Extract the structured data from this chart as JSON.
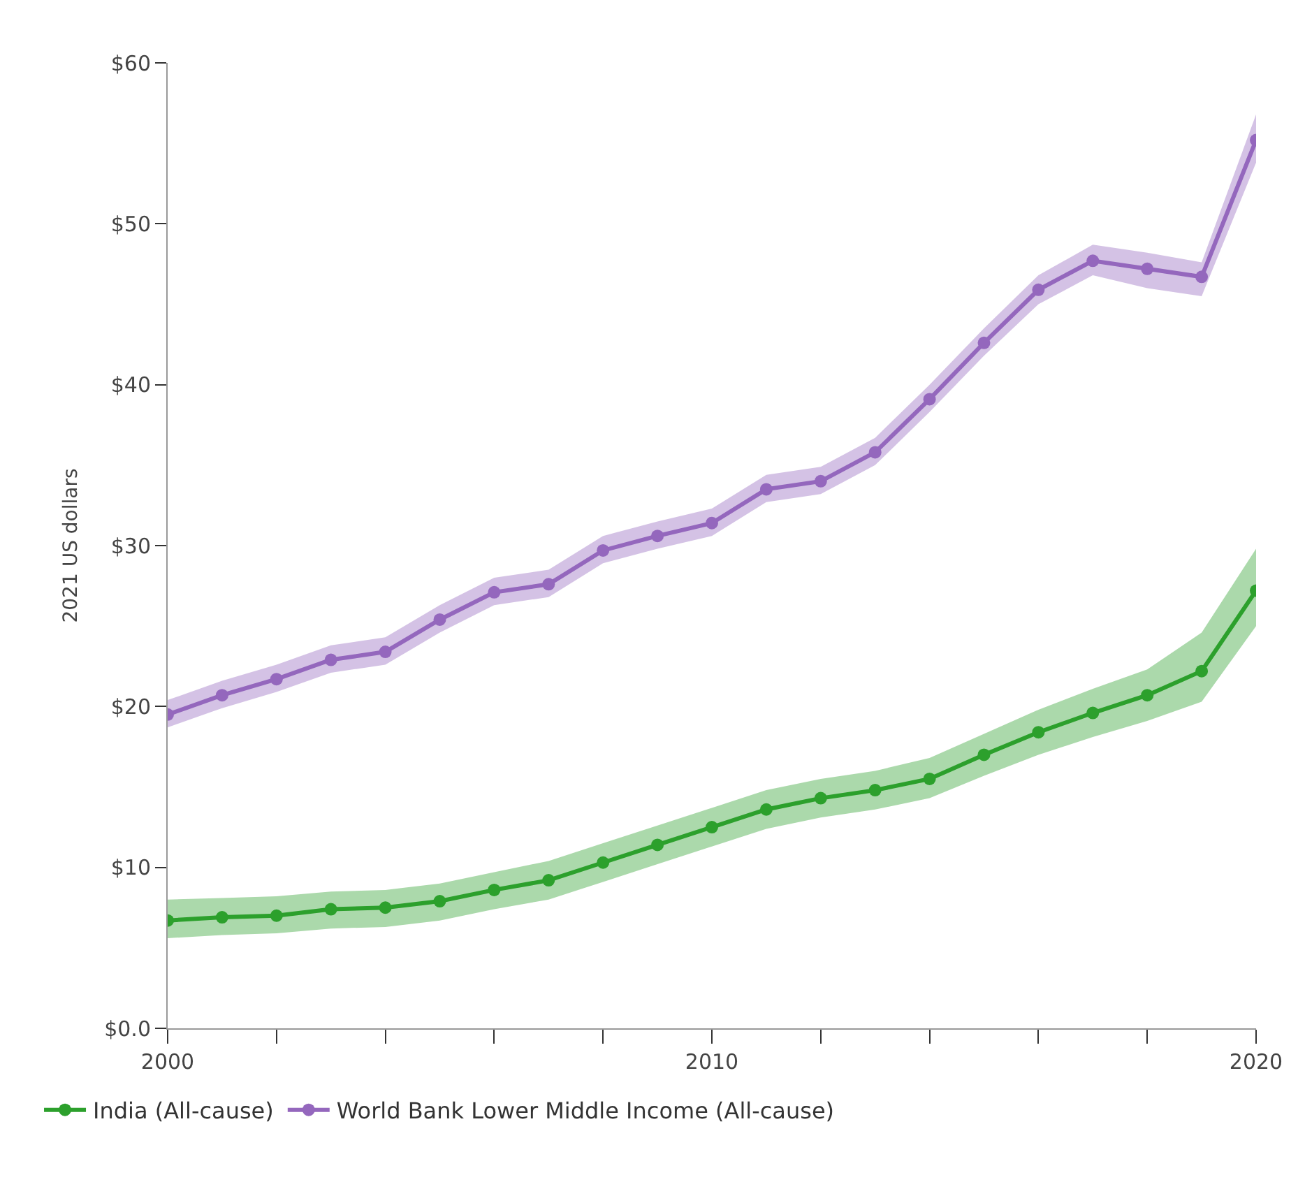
{
  "chart_data": {
    "type": "line",
    "ylabel": "2021 US dollars",
    "x": [
      2000,
      2001,
      2002,
      2003,
      2004,
      2005,
      2006,
      2007,
      2008,
      2009,
      2010,
      2011,
      2012,
      2013,
      2014,
      2015,
      2016,
      2017,
      2018,
      2019,
      2020
    ],
    "series": [
      {
        "name": "India (All-cause)",
        "color": "#2ca02c",
        "values": [
          6.7,
          6.9,
          7.0,
          7.4,
          7.5,
          7.9,
          8.6,
          9.2,
          10.3,
          11.4,
          12.5,
          13.6,
          14.3,
          14.8,
          15.5,
          17.0,
          18.4,
          19.6,
          20.7,
          22.2,
          27.2
        ],
        "lower": [
          5.6,
          5.8,
          5.9,
          6.2,
          6.3,
          6.7,
          7.4,
          8.0,
          9.1,
          10.2,
          11.3,
          12.4,
          13.1,
          13.6,
          14.3,
          15.7,
          17.0,
          18.1,
          19.1,
          20.3,
          25.0
        ],
        "upper": [
          8.0,
          8.1,
          8.2,
          8.5,
          8.6,
          9.0,
          9.7,
          10.4,
          11.5,
          12.6,
          13.7,
          14.8,
          15.5,
          16.0,
          16.8,
          18.3,
          19.8,
          21.1,
          22.3,
          24.6,
          29.8
        ]
      },
      {
        "name": "World Bank Lower Middle Income (All-cause)",
        "color": "#9467bd",
        "values": [
          19.5,
          20.7,
          21.7,
          22.9,
          23.4,
          25.4,
          27.1,
          27.6,
          29.7,
          30.6,
          31.4,
          33.5,
          34.0,
          35.8,
          39.1,
          42.6,
          45.9,
          47.7,
          47.2,
          46.7,
          55.2
        ],
        "lower": [
          18.7,
          19.9,
          20.9,
          22.1,
          22.6,
          24.6,
          26.3,
          26.8,
          28.9,
          29.8,
          30.6,
          32.7,
          33.2,
          35.0,
          38.3,
          41.8,
          45.0,
          46.8,
          46.0,
          45.5,
          53.8
        ],
        "upper": [
          20.4,
          21.6,
          22.6,
          23.8,
          24.3,
          26.3,
          28.0,
          28.5,
          30.6,
          31.5,
          32.3,
          34.4,
          34.9,
          36.7,
          40.0,
          43.5,
          46.8,
          48.7,
          48.2,
          47.6,
          56.8
        ]
      }
    ],
    "xlim": [
      2000,
      2020
    ],
    "xticks": [
      2000,
      {
        "value": 2002,
        "label": null
      },
      {
        "value": 2004,
        "label": null
      },
      {
        "value": 2006,
        "label": null
      },
      {
        "value": 2008,
        "label": null
      },
      2010,
      {
        "value": 2012,
        "label": null
      },
      {
        "value": 2014,
        "label": null
      },
      {
        "value": 2016,
        "label": null
      },
      {
        "value": 2018,
        "label": null
      },
      2020
    ],
    "ylim": [
      0,
      60
    ],
    "yticks": [
      {
        "value": 0,
        "label": "$0.0"
      },
      {
        "value": 10,
        "label": "$10"
      },
      {
        "value": 20,
        "label": "$20"
      },
      {
        "value": 30,
        "label": "$30"
      },
      {
        "value": 40,
        "label": "$40"
      },
      {
        "value": 50,
        "label": "$50"
      },
      {
        "value": 60,
        "label": "$60"
      }
    ],
    "marker": "circle",
    "line_style": "solid",
    "legend": "bottom"
  }
}
